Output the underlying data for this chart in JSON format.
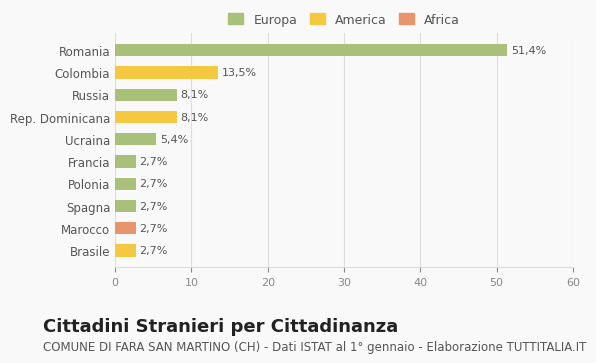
{
  "categories": [
    "Brasile",
    "Marocco",
    "Spagna",
    "Polonia",
    "Francia",
    "Ucraina",
    "Rep. Dominicana",
    "Russia",
    "Colombia",
    "Romania"
  ],
  "values": [
    2.7,
    2.7,
    2.7,
    2.7,
    2.7,
    5.4,
    8.1,
    8.1,
    13.5,
    51.4
  ],
  "labels": [
    "2,7%",
    "2,7%",
    "2,7%",
    "2,7%",
    "2,7%",
    "5,4%",
    "8,1%",
    "8,1%",
    "13,5%",
    "51,4%"
  ],
  "colors": [
    "#f5c842",
    "#e8956d",
    "#a8c07a",
    "#a8c07a",
    "#a8c07a",
    "#a8c07a",
    "#f5c842",
    "#a8c07a",
    "#f5c842",
    "#a8c07a"
  ],
  "continents": [
    "America",
    "Africa",
    "Europa",
    "Europa",
    "Europa",
    "Europa",
    "America",
    "Europa",
    "America",
    "Europa"
  ],
  "legend": [
    {
      "label": "Europa",
      "color": "#a8c07a"
    },
    {
      "label": "America",
      "color": "#f5c842"
    },
    {
      "label": "Africa",
      "color": "#e8956d"
    }
  ],
  "xlim": [
    0,
    60
  ],
  "xticks": [
    0,
    10,
    20,
    30,
    40,
    50,
    60
  ],
  "title": "Cittadini Stranieri per Cittadinanza",
  "subtitle": "COMUNE DI FARA SAN MARTINO (CH) - Dati ISTAT al 1° gennaio - Elaborazione TUTTITALIA.IT",
  "bg_color": "#f9f9f9",
  "grid_color": "#dddddd",
  "bar_height": 0.55,
  "title_fontsize": 13,
  "subtitle_fontsize": 8.5,
  "label_fontsize": 8,
  "ytick_fontsize": 8.5
}
